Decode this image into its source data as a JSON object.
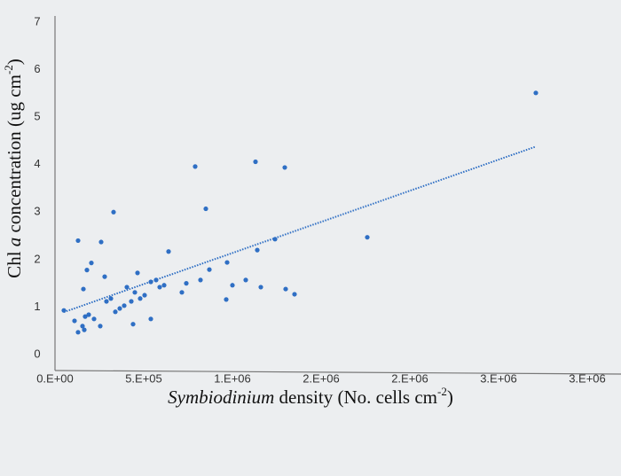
{
  "chart_data": {
    "type": "scatter",
    "y_label": {
      "start": "Chl ",
      "italic": "a",
      "middle": " concentration (ug cm",
      "sup": "-2",
      "end": ")"
    },
    "x_label": {
      "italic": "Symbiodinium",
      "middle": " density (No. cells cm",
      "sup": "-2",
      "end": ")"
    },
    "color": "#2f6fc4",
    "trendline": true,
    "xlim": [
      0,
      3150000
    ],
    "ylim": [
      0,
      7
    ],
    "xticks": [
      {
        "value": 0,
        "label": "0.E+00"
      },
      {
        "value": 500000,
        "label": "5.E+05"
      },
      {
        "value": 1000000,
        "label": "1.E+06"
      },
      {
        "value": 1500000,
        "label": "2.E+06"
      },
      {
        "value": 2000000,
        "label": "2.E+06"
      },
      {
        "value": 2500000,
        "label": "3.E+06"
      },
      {
        "value": 3000000,
        "label": "3.E+06"
      }
    ],
    "yticks": [
      0,
      1,
      2,
      3,
      4,
      5,
      6,
      7
    ],
    "x": [
      50000,
      130000,
      180000,
      205000,
      160000,
      260000,
      330000,
      280000,
      110000,
      130000,
      155000,
      170000,
      190000,
      220000,
      255000,
      165000,
      290000,
      315000,
      340000,
      365000,
      390000,
      405000,
      430000,
      440000,
      450000,
      465000,
      480000,
      505000,
      540000,
      540000,
      570000,
      590000,
      640000,
      615000,
      715000,
      740000,
      790000,
      820000,
      850000,
      870000,
      965000,
      970000,
      1000000,
      1075000,
      1130000,
      1140000,
      1160000,
      1240000,
      1295000,
      1300000,
      1350000,
      1760000,
      2710000
    ],
    "values": [
      0.93,
      2.4,
      1.78,
      1.93,
      1.38,
      2.37,
      3.0,
      1.64,
      0.71,
      0.47,
      0.6,
      0.8,
      0.84,
      0.75,
      0.6,
      0.52,
      1.12,
      1.18,
      0.9,
      0.97,
      1.03,
      1.42,
      1.12,
      0.64,
      1.31,
      1.72,
      1.18,
      1.25,
      1.53,
      0.75,
      1.57,
      1.42,
      2.17,
      1.46,
      1.31,
      1.5,
      3.96,
      1.57,
      3.07,
      1.79,
      1.16,
      1.94,
      1.46,
      1.57,
      4.06,
      2.2,
      1.42,
      2.43,
      3.94,
      1.38,
      1.27,
      2.47,
      5.51
    ]
  }
}
